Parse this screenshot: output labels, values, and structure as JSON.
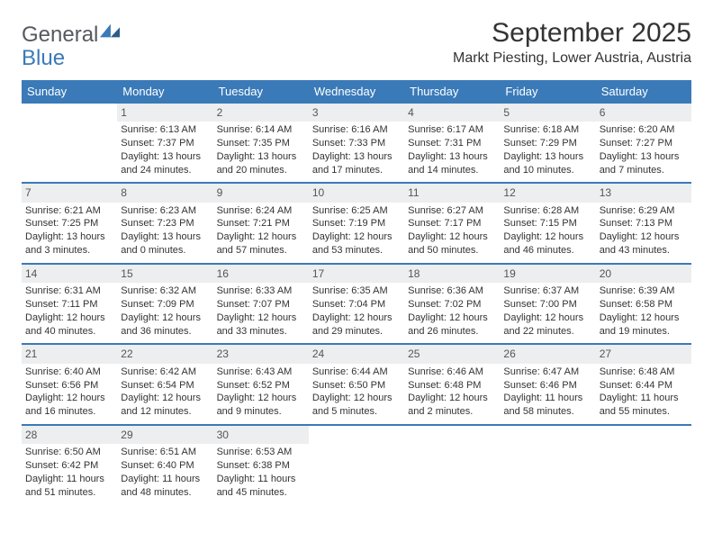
{
  "logo": {
    "word1": "General",
    "word2": "Blue"
  },
  "title": "September 2025",
  "location": "Markt Piesting, Lower Austria, Austria",
  "colors": {
    "header_bg": "#3a7ab8",
    "daynum_bg": "#eceeef",
    "text": "#333333",
    "logo_gray": "#555a60"
  },
  "dow": [
    "Sunday",
    "Monday",
    "Tuesday",
    "Wednesday",
    "Thursday",
    "Friday",
    "Saturday"
  ],
  "weeks": [
    [
      {
        "num": "",
        "lines": [
          "",
          "",
          "",
          ""
        ]
      },
      {
        "num": "1",
        "lines": [
          "Sunrise: 6:13 AM",
          "Sunset: 7:37 PM",
          "Daylight: 13 hours",
          "and 24 minutes."
        ]
      },
      {
        "num": "2",
        "lines": [
          "Sunrise: 6:14 AM",
          "Sunset: 7:35 PM",
          "Daylight: 13 hours",
          "and 20 minutes."
        ]
      },
      {
        "num": "3",
        "lines": [
          "Sunrise: 6:16 AM",
          "Sunset: 7:33 PM",
          "Daylight: 13 hours",
          "and 17 minutes."
        ]
      },
      {
        "num": "4",
        "lines": [
          "Sunrise: 6:17 AM",
          "Sunset: 7:31 PM",
          "Daylight: 13 hours",
          "and 14 minutes."
        ]
      },
      {
        "num": "5",
        "lines": [
          "Sunrise: 6:18 AM",
          "Sunset: 7:29 PM",
          "Daylight: 13 hours",
          "and 10 minutes."
        ]
      },
      {
        "num": "6",
        "lines": [
          "Sunrise: 6:20 AM",
          "Sunset: 7:27 PM",
          "Daylight: 13 hours",
          "and 7 minutes."
        ]
      }
    ],
    [
      {
        "num": "7",
        "lines": [
          "Sunrise: 6:21 AM",
          "Sunset: 7:25 PM",
          "Daylight: 13 hours",
          "and 3 minutes."
        ]
      },
      {
        "num": "8",
        "lines": [
          "Sunrise: 6:23 AM",
          "Sunset: 7:23 PM",
          "Daylight: 13 hours",
          "and 0 minutes."
        ]
      },
      {
        "num": "9",
        "lines": [
          "Sunrise: 6:24 AM",
          "Sunset: 7:21 PM",
          "Daylight: 12 hours",
          "and 57 minutes."
        ]
      },
      {
        "num": "10",
        "lines": [
          "Sunrise: 6:25 AM",
          "Sunset: 7:19 PM",
          "Daylight: 12 hours",
          "and 53 minutes."
        ]
      },
      {
        "num": "11",
        "lines": [
          "Sunrise: 6:27 AM",
          "Sunset: 7:17 PM",
          "Daylight: 12 hours",
          "and 50 minutes."
        ]
      },
      {
        "num": "12",
        "lines": [
          "Sunrise: 6:28 AM",
          "Sunset: 7:15 PM",
          "Daylight: 12 hours",
          "and 46 minutes."
        ]
      },
      {
        "num": "13",
        "lines": [
          "Sunrise: 6:29 AM",
          "Sunset: 7:13 PM",
          "Daylight: 12 hours",
          "and 43 minutes."
        ]
      }
    ],
    [
      {
        "num": "14",
        "lines": [
          "Sunrise: 6:31 AM",
          "Sunset: 7:11 PM",
          "Daylight: 12 hours",
          "and 40 minutes."
        ]
      },
      {
        "num": "15",
        "lines": [
          "Sunrise: 6:32 AM",
          "Sunset: 7:09 PM",
          "Daylight: 12 hours",
          "and 36 minutes."
        ]
      },
      {
        "num": "16",
        "lines": [
          "Sunrise: 6:33 AM",
          "Sunset: 7:07 PM",
          "Daylight: 12 hours",
          "and 33 minutes."
        ]
      },
      {
        "num": "17",
        "lines": [
          "Sunrise: 6:35 AM",
          "Sunset: 7:04 PM",
          "Daylight: 12 hours",
          "and 29 minutes."
        ]
      },
      {
        "num": "18",
        "lines": [
          "Sunrise: 6:36 AM",
          "Sunset: 7:02 PM",
          "Daylight: 12 hours",
          "and 26 minutes."
        ]
      },
      {
        "num": "19",
        "lines": [
          "Sunrise: 6:37 AM",
          "Sunset: 7:00 PM",
          "Daylight: 12 hours",
          "and 22 minutes."
        ]
      },
      {
        "num": "20",
        "lines": [
          "Sunrise: 6:39 AM",
          "Sunset: 6:58 PM",
          "Daylight: 12 hours",
          "and 19 minutes."
        ]
      }
    ],
    [
      {
        "num": "21",
        "lines": [
          "Sunrise: 6:40 AM",
          "Sunset: 6:56 PM",
          "Daylight: 12 hours",
          "and 16 minutes."
        ]
      },
      {
        "num": "22",
        "lines": [
          "Sunrise: 6:42 AM",
          "Sunset: 6:54 PM",
          "Daylight: 12 hours",
          "and 12 minutes."
        ]
      },
      {
        "num": "23",
        "lines": [
          "Sunrise: 6:43 AM",
          "Sunset: 6:52 PM",
          "Daylight: 12 hours",
          "and 9 minutes."
        ]
      },
      {
        "num": "24",
        "lines": [
          "Sunrise: 6:44 AM",
          "Sunset: 6:50 PM",
          "Daylight: 12 hours",
          "and 5 minutes."
        ]
      },
      {
        "num": "25",
        "lines": [
          "Sunrise: 6:46 AM",
          "Sunset: 6:48 PM",
          "Daylight: 12 hours",
          "and 2 minutes."
        ]
      },
      {
        "num": "26",
        "lines": [
          "Sunrise: 6:47 AM",
          "Sunset: 6:46 PM",
          "Daylight: 11 hours",
          "and 58 minutes."
        ]
      },
      {
        "num": "27",
        "lines": [
          "Sunrise: 6:48 AM",
          "Sunset: 6:44 PM",
          "Daylight: 11 hours",
          "and 55 minutes."
        ]
      }
    ],
    [
      {
        "num": "28",
        "lines": [
          "Sunrise: 6:50 AM",
          "Sunset: 6:42 PM",
          "Daylight: 11 hours",
          "and 51 minutes."
        ]
      },
      {
        "num": "29",
        "lines": [
          "Sunrise: 6:51 AM",
          "Sunset: 6:40 PM",
          "Daylight: 11 hours",
          "and 48 minutes."
        ]
      },
      {
        "num": "30",
        "lines": [
          "Sunrise: 6:53 AM",
          "Sunset: 6:38 PM",
          "Daylight: 11 hours",
          "and 45 minutes."
        ]
      },
      {
        "num": "",
        "lines": [
          "",
          "",
          "",
          ""
        ]
      },
      {
        "num": "",
        "lines": [
          "",
          "",
          "",
          ""
        ]
      },
      {
        "num": "",
        "lines": [
          "",
          "",
          "",
          ""
        ]
      },
      {
        "num": "",
        "lines": [
          "",
          "",
          "",
          ""
        ]
      }
    ]
  ]
}
